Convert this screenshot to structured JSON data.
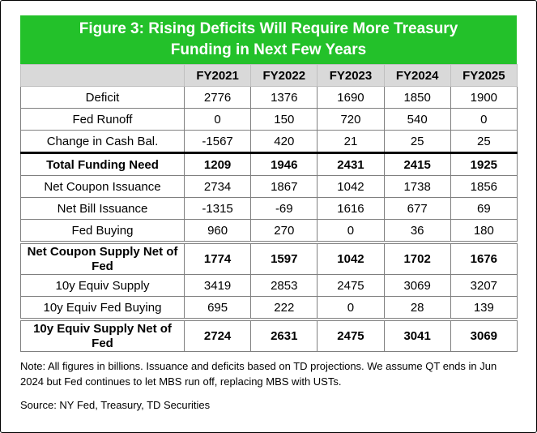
{
  "figure": {
    "title_line1": "Figure 3: Rising Deficits Will Require More Treasury",
    "title_line2": "Funding in Next Few Years",
    "banner_color": "#23c12a",
    "header_bg": "#d9d9d9"
  },
  "table": {
    "columns": [
      "",
      "FY2021",
      "FY2022",
      "FY2023",
      "FY2024",
      "FY2025"
    ],
    "rows": [
      {
        "label": "Deficit",
        "values": [
          "2776",
          "1376",
          "1690",
          "1850",
          "1900"
        ]
      },
      {
        "label": "Fed Runoff",
        "values": [
          "0",
          "150",
          "720",
          "540",
          "0"
        ]
      },
      {
        "label": "Change in Cash Bal.",
        "values": [
          "-1567",
          "420",
          "21",
          "25",
          "25"
        ]
      },
      {
        "label": "Total Funding Need",
        "values": [
          "1209",
          "1946",
          "2431",
          "2415",
          "1925"
        ]
      },
      {
        "label": "Net Coupon Issuance",
        "values": [
          "2734",
          "1867",
          "1042",
          "1738",
          "1856"
        ]
      },
      {
        "label": "Net Bill Issuance",
        "values": [
          "-1315",
          "-69",
          "1616",
          "677",
          "69"
        ]
      },
      {
        "label": "Fed Buying",
        "values": [
          "960",
          "270",
          "0",
          "36",
          "180"
        ]
      },
      {
        "label": "Net Coupon Supply Net of Fed",
        "values": [
          "1774",
          "1597",
          "1042",
          "1702",
          "1676"
        ]
      },
      {
        "label": "10y Equiv Supply",
        "values": [
          "3419",
          "2853",
          "2475",
          "3069",
          "3207"
        ]
      },
      {
        "label": "10y Equiv Fed Buying",
        "values": [
          "695",
          "222",
          "0",
          "28",
          "139"
        ]
      },
      {
        "label": "10y Equiv Supply Net of Fed",
        "values": [
          "2724",
          "2631",
          "2475",
          "3041",
          "3069"
        ]
      }
    ]
  },
  "note": "Note: All figures in billions. Issuance and deficits based on TD projections. We assume QT ends in Jun 2024 but Fed continues to let MBS run off, replacing MBS with USTs.",
  "source": "Source: NY Fed, Treasury, TD Securities"
}
